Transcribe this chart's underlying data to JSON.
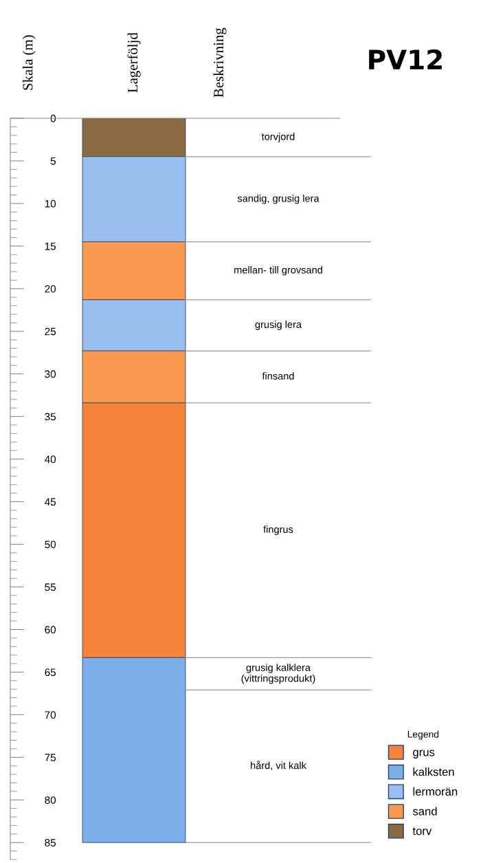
{
  "chart_data": {
    "type": "bar",
    "stacked": true,
    "title": "PV12",
    "ylabel": "Skala (m)",
    "categories": [
      null
    ],
    "series": [
      {
        "name": "torv",
        "color": "#8b6a42",
        "values": [
          4.5
        ]
      },
      {
        "name": "lermorän",
        "color": "#99bff0",
        "values": [
          10
        ]
      },
      {
        "name": "sand",
        "color": "#fa9a50",
        "values": [
          6.8
        ]
      },
      {
        "color": "#99bff0",
        "values": [
          6
        ]
      },
      {
        "color": "#fa9a50",
        "values": [
          6.1
        ]
      },
      {
        "name": "grus",
        "color": "#f5843a",
        "values": [
          29.9
        ]
      },
      {
        "name": "kalksten",
        "color": "#7eaee8",
        "values": [
          21.7
        ]
      }
    ],
    "ylim": [
      87,
      0
    ],
    "yticks": [
      0,
      5,
      10,
      15,
      20,
      25,
      30,
      35,
      40,
      45,
      50,
      55,
      60,
      65,
      70,
      75,
      80,
      85
    ],
    "legend": "bottom right",
    "legend_title": "Legend",
    "ref_lines": [
      {
        "axis": "y",
        "value": 4.5,
        "color": "#9a9a9a"
      },
      {
        "axis": "y",
        "value": 14.5,
        "color": "#9a9a9a"
      },
      {
        "axis": "y",
        "value": 21.3,
        "color": "#9a9a9a"
      },
      {
        "axis": "y",
        "value": 27.3,
        "color": "#9a9a9a"
      },
      {
        "axis": "y",
        "value": 33.4,
        "color": "#9a9a9a"
      },
      {
        "axis": "y",
        "value": 63.3,
        "color": "#9a9a9a"
      },
      {
        "axis": "y",
        "value": 67.1,
        "color": "#9a9a9a"
      },
      {
        "axis": "y",
        "value": 85,
        "color": "#9a9a9a"
      }
    ],
    "annotations": [
      "Lagerföljd",
      "Beskrivning",
      "torvjord",
      "sandig, grusig lera",
      "mellan- till grovsand",
      "grusig lera",
      "finsand",
      "fingrus",
      "grusig kalklera\n(vittringsprodukt)",
      "hård, vit kalk"
    ]
  }
}
